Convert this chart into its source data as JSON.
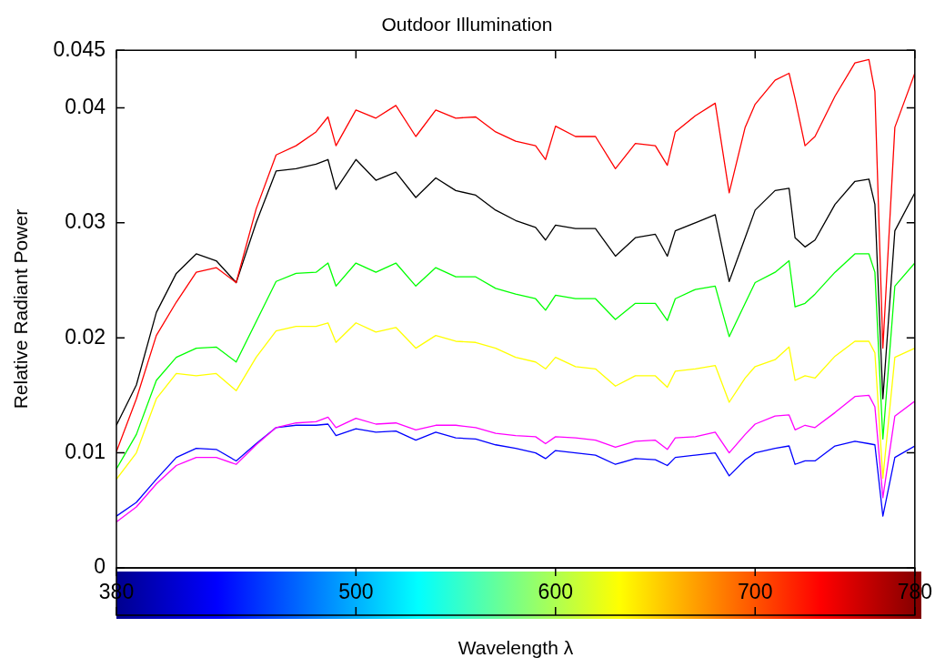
{
  "chart_data": {
    "type": "line",
    "title": "Outdoor Illumination",
    "xlabel": "Wavelength λ",
    "ylabel": "Relative Radiant Power",
    "x": [
      380,
      390,
      400,
      410,
      420,
      430,
      440,
      450,
      460,
      470,
      480,
      486,
      490,
      500,
      510,
      520,
      530,
      540,
      550,
      560,
      570,
      580,
      590,
      595,
      600,
      610,
      620,
      630,
      640,
      650,
      656,
      660,
      670,
      680,
      687,
      695,
      700,
      710,
      717,
      720,
      725,
      730,
      740,
      750,
      757,
      760,
      764,
      770,
      780
    ],
    "xlim": [
      380,
      780
    ],
    "xticks": [
      380,
      500,
      600,
      700,
      780
    ],
    "ylim": [
      0,
      0.045
    ],
    "yticks": [
      0,
      0.01,
      0.02,
      0.03,
      0.04,
      0.045
    ],
    "series": [
      {
        "color": "#ff0000",
        "values": [
          0.0101,
          0.0147,
          0.0202,
          0.0231,
          0.0257,
          0.0261,
          0.0248,
          0.0312,
          0.0359,
          0.0367,
          0.0379,
          0.0392,
          0.0367,
          0.0398,
          0.0391,
          0.0402,
          0.0375,
          0.0398,
          0.0391,
          0.0392,
          0.0379,
          0.0371,
          0.0367,
          0.0355,
          0.0384,
          0.0375,
          0.0375,
          0.0347,
          0.0369,
          0.0367,
          0.035,
          0.0379,
          0.0393,
          0.0404,
          0.0326,
          0.0383,
          0.0403,
          0.0424,
          0.043,
          0.0408,
          0.0367,
          0.0375,
          0.041,
          0.0439,
          0.0442,
          0.0414,
          0.0191,
          0.0383,
          0.043
        ]
      },
      {
        "color": "#000000",
        "values": [
          0.0124,
          0.0159,
          0.0222,
          0.0256,
          0.0273,
          0.0267,
          0.0248,
          0.03,
          0.0345,
          0.0347,
          0.0351,
          0.0355,
          0.0329,
          0.0355,
          0.0337,
          0.0344,
          0.0322,
          0.0339,
          0.0328,
          0.0324,
          0.0311,
          0.0302,
          0.0296,
          0.0285,
          0.0298,
          0.0295,
          0.0295,
          0.0271,
          0.0287,
          0.029,
          0.0271,
          0.0293,
          0.03,
          0.0307,
          0.0249,
          0.0287,
          0.0311,
          0.0328,
          0.033,
          0.0287,
          0.0279,
          0.0285,
          0.0316,
          0.0336,
          0.0338,
          0.0316,
          0.0147,
          0.0293,
          0.0326
        ]
      },
      {
        "color": "#00ff00",
        "values": [
          0.0086,
          0.0116,
          0.0163,
          0.0183,
          0.0191,
          0.0192,
          0.0179,
          0.0214,
          0.0249,
          0.0256,
          0.0257,
          0.0265,
          0.0245,
          0.0265,
          0.0257,
          0.0265,
          0.0245,
          0.0261,
          0.0253,
          0.0253,
          0.0243,
          0.0238,
          0.0234,
          0.0224,
          0.0237,
          0.0234,
          0.0234,
          0.0216,
          0.023,
          0.023,
          0.0215,
          0.0234,
          0.0242,
          0.0245,
          0.0201,
          0.023,
          0.0248,
          0.0257,
          0.0267,
          0.0227,
          0.023,
          0.0238,
          0.0257,
          0.0273,
          0.0273,
          0.0257,
          0.0112,
          0.0245,
          0.0265
        ]
      },
      {
        "color": "#ffff00",
        "values": [
          0.0077,
          0.01,
          0.0147,
          0.0169,
          0.0167,
          0.0169,
          0.0154,
          0.0183,
          0.0206,
          0.021,
          0.021,
          0.0213,
          0.0196,
          0.0213,
          0.0205,
          0.0209,
          0.0191,
          0.0202,
          0.0197,
          0.0196,
          0.0191,
          0.0183,
          0.0179,
          0.0173,
          0.0183,
          0.0175,
          0.0173,
          0.0158,
          0.0167,
          0.0167,
          0.0157,
          0.0171,
          0.0173,
          0.0176,
          0.0144,
          0.0165,
          0.0175,
          0.0181,
          0.0192,
          0.0163,
          0.0167,
          0.0165,
          0.0184,
          0.0197,
          0.0197,
          0.0187,
          0.0078,
          0.0183,
          0.0191
        ]
      },
      {
        "color": "#ff00ff",
        "values": [
          0.004,
          0.0053,
          0.0073,
          0.0089,
          0.0096,
          0.0096,
          0.009,
          0.0107,
          0.0122,
          0.0126,
          0.0127,
          0.0131,
          0.0122,
          0.013,
          0.0125,
          0.0126,
          0.012,
          0.0124,
          0.0124,
          0.0122,
          0.0117,
          0.0115,
          0.0114,
          0.0108,
          0.0114,
          0.0113,
          0.0111,
          0.0105,
          0.011,
          0.0111,
          0.0103,
          0.0113,
          0.0114,
          0.0118,
          0.01,
          0.0116,
          0.0125,
          0.0132,
          0.0133,
          0.012,
          0.0124,
          0.0122,
          0.0135,
          0.0149,
          0.015,
          0.014,
          0.0061,
          0.0132,
          0.0145
        ]
      },
      {
        "color": "#0000ff",
        "values": [
          0.0045,
          0.0057,
          0.0077,
          0.0096,
          0.0104,
          0.0103,
          0.0093,
          0.0108,
          0.0122,
          0.0124,
          0.0124,
          0.0125,
          0.0115,
          0.0121,
          0.0118,
          0.0119,
          0.0111,
          0.0118,
          0.0113,
          0.0112,
          0.0107,
          0.0104,
          0.01,
          0.0095,
          0.0102,
          0.01,
          0.0098,
          0.009,
          0.0095,
          0.0094,
          0.0089,
          0.0096,
          0.0098,
          0.01,
          0.008,
          0.0094,
          0.01,
          0.0104,
          0.0106,
          0.009,
          0.0093,
          0.0093,
          0.0106,
          0.011,
          0.0108,
          0.0107,
          0.0045,
          0.0096,
          0.0106
        ]
      }
    ]
  }
}
